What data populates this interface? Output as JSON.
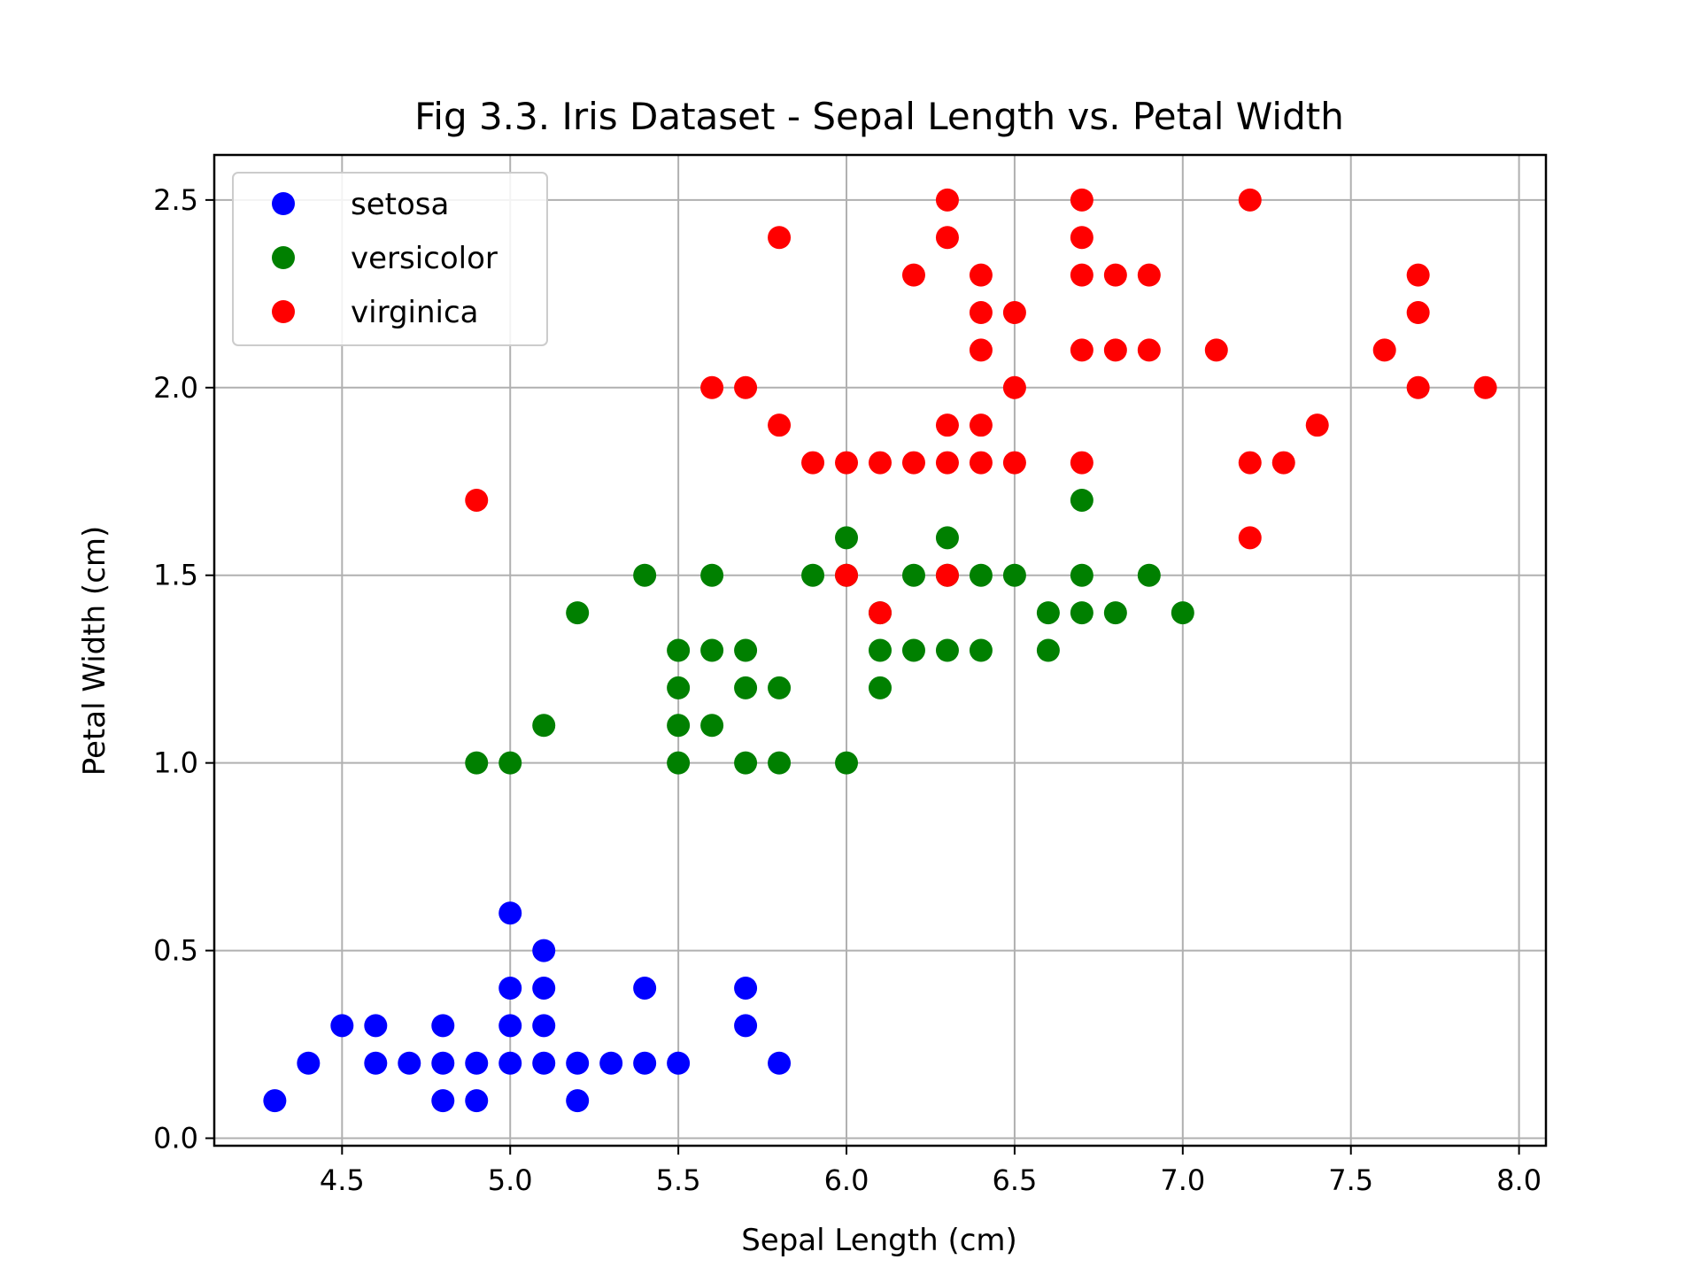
{
  "chart_data": {
    "type": "scatter",
    "title": "Fig 3.3. Iris Dataset - Sepal Length vs. Petal Width",
    "xlabel": "Sepal Length (cm)",
    "ylabel": "Petal Width (cm)",
    "xlim": [
      4.12,
      8.08
    ],
    "ylim": [
      -0.02,
      2.62
    ],
    "xticks": [
      "4.5",
      "5.0",
      "5.5",
      "6.0",
      "6.5",
      "7.0",
      "7.5",
      "8.0"
    ],
    "yticks": [
      "0.0",
      "0.5",
      "1.0",
      "1.5",
      "2.0",
      "2.5"
    ],
    "grid": true,
    "legend_position": "upper-left",
    "series": [
      {
        "name": "setosa",
        "color": "#0000ff",
        "points": [
          [
            4.3,
            0.1
          ],
          [
            4.4,
            0.2
          ],
          [
            4.5,
            0.3
          ],
          [
            4.6,
            0.3
          ],
          [
            4.6,
            0.2
          ],
          [
            4.7,
            0.2
          ],
          [
            4.8,
            0.3
          ],
          [
            4.8,
            0.2
          ],
          [
            4.8,
            0.1
          ],
          [
            4.9,
            0.2
          ],
          [
            4.9,
            0.1
          ],
          [
            5.0,
            0.6
          ],
          [
            5.0,
            0.4
          ],
          [
            5.0,
            0.3
          ],
          [
            5.0,
            0.2
          ],
          [
            5.1,
            0.5
          ],
          [
            5.1,
            0.4
          ],
          [
            5.1,
            0.3
          ],
          [
            5.1,
            0.2
          ],
          [
            5.2,
            0.2
          ],
          [
            5.2,
            0.1
          ],
          [
            5.3,
            0.2
          ],
          [
            5.4,
            0.4
          ],
          [
            5.4,
            0.2
          ],
          [
            5.5,
            0.2
          ],
          [
            5.7,
            0.4
          ],
          [
            5.7,
            0.3
          ],
          [
            5.8,
            0.2
          ]
        ]
      },
      {
        "name": "versicolor",
        "color": "#008000",
        "points": [
          [
            4.9,
            1.0
          ],
          [
            5.0,
            1.0
          ],
          [
            5.1,
            1.1
          ],
          [
            5.2,
            1.4
          ],
          [
            5.4,
            1.5
          ],
          [
            5.5,
            1.3
          ],
          [
            5.5,
            1.2
          ],
          [
            5.5,
            1.1
          ],
          [
            5.5,
            1.0
          ],
          [
            5.6,
            1.5
          ],
          [
            5.6,
            1.3
          ],
          [
            5.6,
            1.1
          ],
          [
            5.7,
            1.3
          ],
          [
            5.7,
            1.2
          ],
          [
            5.7,
            1.0
          ],
          [
            5.8,
            1.2
          ],
          [
            5.8,
            1.0
          ],
          [
            5.9,
            1.5
          ],
          [
            6.0,
            1.6
          ],
          [
            6.0,
            1.5
          ],
          [
            6.0,
            1.0
          ],
          [
            6.1,
            1.4
          ],
          [
            6.1,
            1.3
          ],
          [
            6.1,
            1.2
          ],
          [
            6.2,
            1.5
          ],
          [
            6.2,
            1.3
          ],
          [
            6.3,
            1.6
          ],
          [
            6.3,
            1.5
          ],
          [
            6.3,
            1.3
          ],
          [
            6.4,
            1.5
          ],
          [
            6.4,
            1.3
          ],
          [
            6.5,
            1.5
          ],
          [
            6.6,
            1.4
          ],
          [
            6.6,
            1.3
          ],
          [
            6.7,
            1.7
          ],
          [
            6.7,
            1.5
          ],
          [
            6.7,
            1.4
          ],
          [
            6.8,
            1.4
          ],
          [
            6.9,
            1.5
          ],
          [
            7.0,
            1.4
          ]
        ]
      },
      {
        "name": "virginica",
        "color": "#ff0000",
        "points": [
          [
            4.9,
            1.7
          ],
          [
            5.6,
            2.0
          ],
          [
            5.7,
            2.0
          ],
          [
            5.8,
            2.4
          ],
          [
            5.8,
            1.9
          ],
          [
            5.9,
            1.8
          ],
          [
            6.0,
            1.8
          ],
          [
            6.0,
            1.5
          ],
          [
            6.1,
            1.8
          ],
          [
            6.1,
            1.4
          ],
          [
            6.2,
            2.3
          ],
          [
            6.2,
            1.8
          ],
          [
            6.3,
            2.5
          ],
          [
            6.3,
            2.4
          ],
          [
            6.3,
            1.9
          ],
          [
            6.3,
            1.8
          ],
          [
            6.3,
            1.5
          ],
          [
            6.4,
            2.3
          ],
          [
            6.4,
            2.2
          ],
          [
            6.4,
            2.1
          ],
          [
            6.4,
            1.9
          ],
          [
            6.4,
            1.8
          ],
          [
            6.5,
            2.2
          ],
          [
            6.5,
            2.0
          ],
          [
            6.5,
            1.8
          ],
          [
            6.7,
            2.5
          ],
          [
            6.7,
            2.4
          ],
          [
            6.7,
            2.3
          ],
          [
            6.7,
            2.1
          ],
          [
            6.7,
            1.8
          ],
          [
            6.8,
            2.3
          ],
          [
            6.8,
            2.1
          ],
          [
            6.9,
            2.3
          ],
          [
            6.9,
            2.1
          ],
          [
            7.1,
            2.1
          ],
          [
            7.2,
            2.5
          ],
          [
            7.2,
            1.8
          ],
          [
            7.2,
            1.6
          ],
          [
            7.3,
            1.8
          ],
          [
            7.4,
            1.9
          ],
          [
            7.6,
            2.1
          ],
          [
            7.7,
            2.3
          ],
          [
            7.7,
            2.2
          ],
          [
            7.7,
            2.0
          ],
          [
            7.9,
            2.0
          ]
        ]
      }
    ]
  }
}
